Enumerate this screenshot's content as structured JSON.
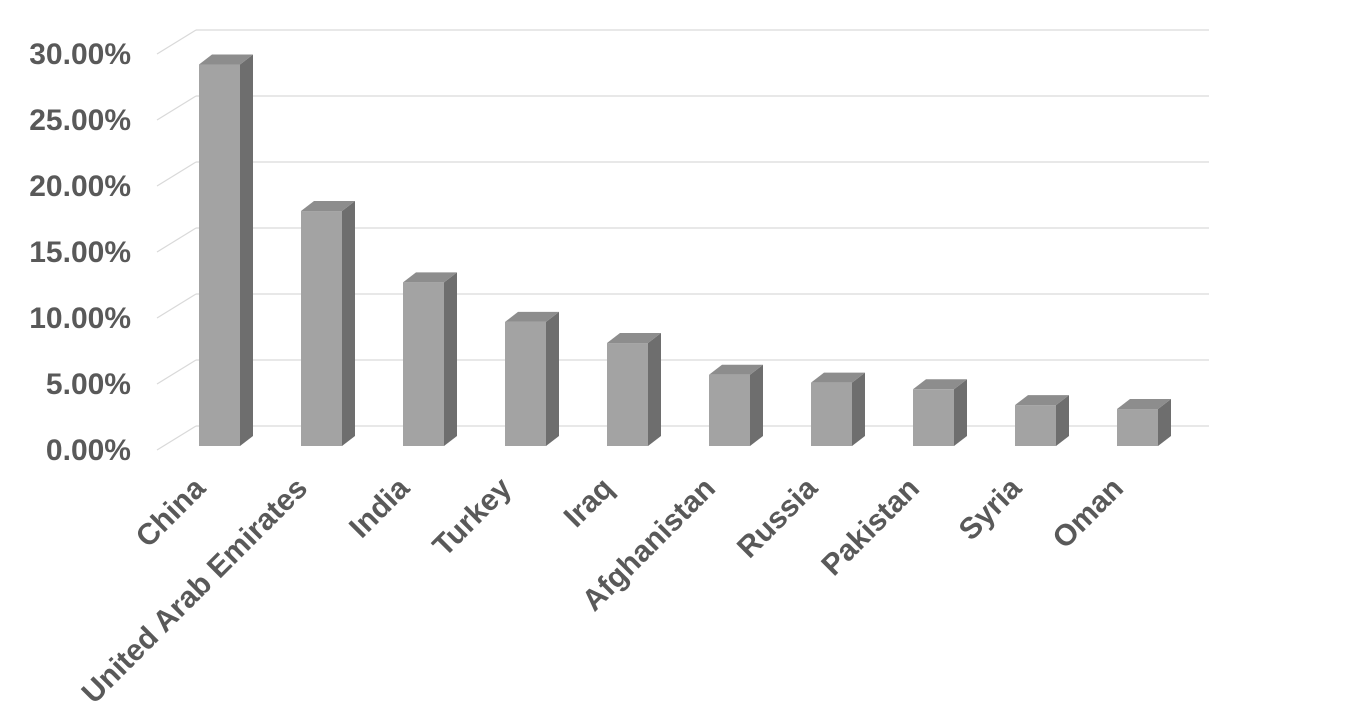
{
  "page": {
    "background": "#ffffff"
  },
  "chart_data": {
    "type": "bar",
    "variant": "3d-column",
    "title": "",
    "xlabel": "",
    "ylabel": "",
    "grid": true,
    "legend": false,
    "categories": [
      "China",
      "United Arab Emirates",
      "India",
      "Turkey",
      "Iraq",
      "Afghanistan",
      "Russia",
      "Pakistan",
      "Syria",
      "Oman"
    ],
    "values": [
      28.9,
      17.8,
      12.4,
      9.4,
      7.8,
      5.4,
      4.8,
      4.3,
      3.1,
      2.8
    ],
    "value_unit": "%",
    "ylim": [
      0,
      30
    ],
    "ytick_values": [
      0,
      5,
      10,
      15,
      20,
      25,
      30
    ],
    "yticks": [
      "0.00%",
      "5.00%",
      "10.00%",
      "15.00%",
      "20.00%",
      "25.00%",
      "30.00%"
    ],
    "colors": {
      "bar_front": "#a3a3a3",
      "bar_top": "#8d8d8d",
      "bar_side": "#6e6e6e",
      "gridline": "#d9d9d9",
      "label_text": "#595959",
      "background": "#ffffff"
    }
  }
}
